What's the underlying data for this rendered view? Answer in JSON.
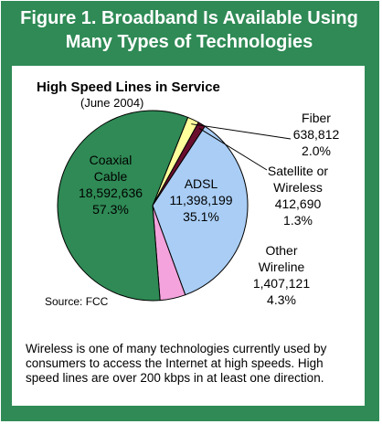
{
  "figure": {
    "title_line1": "Figure 1.  Broadband Is Available Using",
    "title_line2": "Many Types of Technologies",
    "source": "Source: FCC",
    "caption": "Wireless is one of many technologies currently used by consumers to access the Internet at high speeds. High speed lines are over 200 kbps in at least one direction."
  },
  "colors": {
    "frame": "#2f8a55",
    "coaxial": "#2f8a55",
    "adsl": "#a9cdf5",
    "other": "#f4a3dc",
    "satellite": "#6a0e2e",
    "fiber": "#ffff9c"
  },
  "chart_data": {
    "type": "pie",
    "title": "High Speed Lines in Service",
    "subtitle": "(June 2004)",
    "series": [
      {
        "name": "Coaxial Cable",
        "label_lines": [
          "Coaxial",
          "Cable",
          "18,592,636",
          "57.3%"
        ],
        "value": 18592636,
        "percent": 57.3
      },
      {
        "name": "ADSL",
        "label_lines": [
          "ADSL",
          "11,398,199",
          "35.1%"
        ],
        "value": 11398199,
        "percent": 35.1
      },
      {
        "name": "Other Wireline",
        "label_lines": [
          "Other",
          "Wireline",
          "1,407,121",
          "4.3%"
        ],
        "value": 1407121,
        "percent": 4.3
      },
      {
        "name": "Satellite or Wireless",
        "label_lines": [
          "Satellite or",
          "Wireless",
          "412,690",
          "1.3%"
        ],
        "value": 412690,
        "percent": 1.3
      },
      {
        "name": "Fiber",
        "label_lines": [
          "Fiber",
          "638,812",
          "2.0%"
        ],
        "value": 638812,
        "percent": 2.0
      }
    ]
  }
}
